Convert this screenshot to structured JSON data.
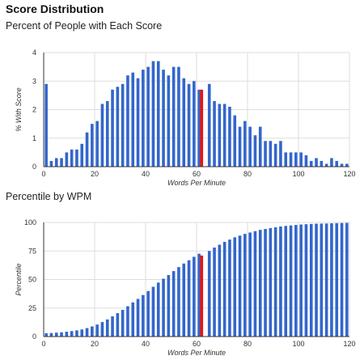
{
  "heading": "Score Distribution",
  "colors": {
    "bar": "#3366cc",
    "highlight": "#ee1111",
    "grid": "#dddddd",
    "axis": "#333333"
  },
  "chart_data": [
    {
      "type": "bar",
      "title": "Percent of People with Each Score",
      "xlabel": "Words Per Minute",
      "ylabel": "% With Score",
      "xlim": [
        0,
        120
      ],
      "ylim": [
        0,
        4
      ],
      "x_ticks": [
        "0",
        "20",
        "40",
        "60",
        "80",
        "100",
        "120"
      ],
      "y_ticks": [
        "0",
        "1",
        "2",
        "3",
        "4"
      ],
      "grid": true,
      "highlight_x": 62,
      "x": [
        1,
        3,
        5,
        7,
        9,
        11,
        13,
        15,
        17,
        19,
        21,
        23,
        25,
        27,
        29,
        31,
        33,
        35,
        37,
        39,
        41,
        43,
        45,
        47,
        49,
        51,
        53,
        55,
        57,
        59,
        61,
        62,
        65,
        67,
        69,
        71,
        73,
        75,
        77,
        79,
        81,
        83,
        85,
        87,
        89,
        91,
        93,
        95,
        97,
        99,
        101,
        103,
        105,
        107,
        109,
        111,
        113,
        115,
        117,
        119
      ],
      "values": [
        2.9,
        0.2,
        0.3,
        0.3,
        0.5,
        0.6,
        0.6,
        0.8,
        1.2,
        1.5,
        1.6,
        2.2,
        2.3,
        2.7,
        2.8,
        2.9,
        3.2,
        3.3,
        3.1,
        3.4,
        3.5,
        3.7,
        3.7,
        3.4,
        3.2,
        3.5,
        3.5,
        3.1,
        2.9,
        3.0,
        2.7,
        2.7,
        2.9,
        2.3,
        2.2,
        2.2,
        2.1,
        1.8,
        1.4,
        1.6,
        1.4,
        1.1,
        1.4,
        0.9,
        0.9,
        0.8,
        0.9,
        0.5,
        0.5,
        0.5,
        0.5,
        0.4,
        0.2,
        0.3,
        0.2,
        0.1,
        0.3,
        0.2,
        0.1,
        0.1
      ]
    },
    {
      "type": "bar",
      "title": "Percentile by WPM",
      "xlabel": "Words Per Minute",
      "ylabel": "Percentile",
      "xlim": [
        0,
        120
      ],
      "ylim": [
        0,
        100
      ],
      "x_ticks": [
        "0",
        "20",
        "40",
        "60",
        "80",
        "100",
        "120"
      ],
      "y_ticks": [
        "0",
        "25",
        "50",
        "75",
        "100"
      ],
      "grid": true,
      "highlight_x": 62,
      "x": [
        1,
        3,
        5,
        7,
        9,
        11,
        13,
        15,
        17,
        19,
        21,
        23,
        25,
        27,
        29,
        31,
        33,
        35,
        37,
        39,
        41,
        43,
        45,
        47,
        49,
        51,
        53,
        55,
        57,
        59,
        61,
        62,
        65,
        67,
        69,
        71,
        73,
        75,
        77,
        79,
        81,
        83,
        85,
        87,
        89,
        91,
        93,
        95,
        97,
        99,
        101,
        103,
        105,
        107,
        109,
        111,
        113,
        115,
        117,
        119
      ],
      "values": [
        2.9,
        3.1,
        3.4,
        3.7,
        4.2,
        4.8,
        5.4,
        6.2,
        7.4,
        8.9,
        10.5,
        12.7,
        15.0,
        17.7,
        20.5,
        23.4,
        26.6,
        29.9,
        33.0,
        36.4,
        39.9,
        43.6,
        47.3,
        50.7,
        53.9,
        57.4,
        60.9,
        64.0,
        66.9,
        69.9,
        72.6,
        71.0,
        75.0,
        78.0,
        80.5,
        83.0,
        85.0,
        87.0,
        88.5,
        90.0,
        91.2,
        92.4,
        93.5,
        94.3,
        95.1,
        95.8,
        96.5,
        97.0,
        97.4,
        97.8,
        98.2,
        98.5,
        98.7,
        98.9,
        99.0,
        99.1,
        99.3,
        99.4,
        99.5,
        99.6
      ]
    }
  ]
}
